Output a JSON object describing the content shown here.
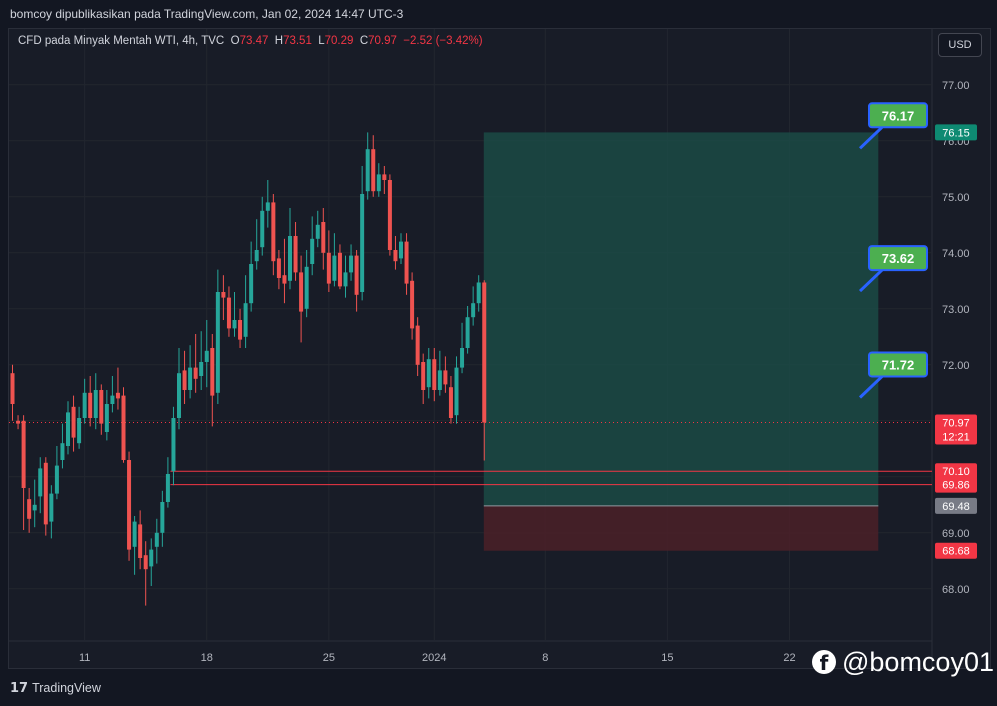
{
  "header": {
    "publication": "bomcoy dipublikasikan pada TradingView.com, Jan 02, 2024 14:47 UTC-3"
  },
  "symbol": {
    "description": "CFD pada Minyak Mentah WTI, 4h, TVC",
    "open_label": "O",
    "open": "73.47",
    "high_label": "H",
    "high": "73.51",
    "low_label": "L",
    "low": "70.29",
    "close_label": "C",
    "close": "70.97",
    "change": "−2.52 (−3.42%)"
  },
  "currency_button": "USD",
  "footer": {
    "brand": "TradingView",
    "logo_mark": "17"
  },
  "watermark": {
    "icon": "facebook-icon",
    "handle": "@bomcoy01"
  },
  "colors": {
    "up": "#26a69a",
    "down": "#ef5350",
    "target_zone": "#1a4a44",
    "stop_zone": "#4a2129",
    "callout_fill": "#4caf50",
    "callout_border": "#2962ff",
    "last_price": "#f23645"
  },
  "chart_data": {
    "type": "candlestick",
    "timeframe": "4h",
    "ylim": [
      67.0,
      77.8
    ],
    "y_ticks": [
      "77.00",
      "76.00",
      "75.00",
      "74.00",
      "73.00",
      "72.00",
      "71.00",
      "70.00",
      "69.00",
      "68.00"
    ],
    "x_ticks": [
      {
        "label": "11",
        "bar": 13
      },
      {
        "label": "18",
        "bar": 35
      },
      {
        "label": "25",
        "bar": 57
      },
      {
        "label": "2024",
        "bar": 76
      },
      {
        "label": "8",
        "bar": 96
      },
      {
        "label": "15",
        "bar": 118
      },
      {
        "label": "22",
        "bar": 140
      }
    ],
    "candles": [
      [
        71.85,
        71.3,
        72.0,
        71.0
      ],
      [
        71.0,
        70.95,
        71.1,
        70.85
      ],
      [
        71.0,
        69.8,
        71.1,
        69.05
      ],
      [
        69.6,
        69.25,
        69.8,
        69.0
      ],
      [
        69.4,
        69.5,
        69.95,
        69.1
      ],
      [
        69.65,
        70.15,
        70.35,
        69.35
      ],
      [
        70.25,
        69.15,
        70.35,
        68.95
      ],
      [
        69.2,
        69.7,
        69.85,
        68.9
      ],
      [
        69.7,
        70.2,
        70.55,
        69.6
      ],
      [
        70.3,
        70.6,
        70.95,
        70.15
      ],
      [
        70.55,
        71.15,
        71.35,
        70.4
      ],
      [
        71.25,
        70.7,
        71.45,
        70.45
      ],
      [
        70.6,
        71.05,
        71.25,
        70.5
      ],
      [
        71.05,
        71.5,
        71.75,
        70.95
      ],
      [
        71.5,
        71.05,
        71.8,
        70.9
      ],
      [
        71.05,
        71.55,
        71.85,
        70.85
      ],
      [
        71.55,
        70.95,
        71.65,
        70.75
      ],
      [
        70.8,
        71.3,
        71.55,
        70.65
      ],
      [
        71.3,
        71.45,
        71.8,
        71.15
      ],
      [
        71.5,
        71.4,
        71.95,
        71.2
      ],
      [
        71.45,
        70.3,
        71.6,
        70.25
      ],
      [
        70.3,
        68.7,
        70.45,
        68.5
      ],
      [
        68.75,
        69.2,
        69.3,
        68.25
      ],
      [
        69.15,
        68.55,
        69.4,
        68.35
      ],
      [
        68.6,
        68.35,
        68.85,
        67.7
      ],
      [
        68.4,
        68.7,
        68.9,
        68.05
      ],
      [
        68.75,
        69.0,
        69.25,
        68.45
      ],
      [
        69.0,
        69.55,
        69.75,
        68.75
      ],
      [
        69.55,
        70.05,
        70.35,
        69.45
      ],
      [
        70.1,
        71.05,
        71.25,
        69.85
      ],
      [
        71.05,
        71.85,
        72.3,
        70.85
      ],
      [
        71.9,
        71.55,
        72.25,
        71.3
      ],
      [
        71.55,
        71.95,
        72.35,
        71.4
      ],
      [
        71.95,
        71.75,
        72.55,
        71.5
      ],
      [
        71.8,
        72.05,
        72.6,
        71.55
      ],
      [
        72.05,
        72.25,
        72.8,
        71.6
      ],
      [
        72.3,
        71.45,
        72.55,
        70.9
      ],
      [
        71.5,
        73.3,
        73.7,
        71.3
      ],
      [
        73.3,
        73.2,
        73.6,
        72.8
      ],
      [
        73.2,
        72.65,
        73.4,
        72.5
      ],
      [
        72.65,
        72.8,
        73.3,
        72.5
      ],
      [
        72.8,
        72.45,
        73.0,
        72.3
      ],
      [
        72.5,
        73.1,
        73.6,
        72.3
      ],
      [
        73.1,
        73.8,
        74.2,
        72.95
      ],
      [
        73.85,
        74.05,
        74.6,
        73.7
      ],
      [
        74.1,
        74.75,
        75.0,
        73.95
      ],
      [
        74.75,
        74.9,
        75.3,
        74.45
      ],
      [
        74.9,
        73.85,
        75.05,
        73.6
      ],
      [
        73.9,
        73.55,
        74.05,
        73.35
      ],
      [
        73.6,
        73.45,
        74.25,
        73.1
      ],
      [
        73.5,
        74.3,
        74.8,
        73.35
      ],
      [
        74.3,
        73.65,
        74.55,
        73.5
      ],
      [
        73.65,
        72.95,
        73.95,
        72.4
      ],
      [
        73.0,
        73.75,
        74.05,
        72.85
      ],
      [
        73.8,
        74.25,
        74.65,
        73.6
      ],
      [
        74.25,
        74.5,
        74.75,
        74.1
      ],
      [
        74.55,
        74.0,
        74.8,
        73.7
      ],
      [
        74.0,
        73.45,
        74.4,
        73.3
      ],
      [
        73.5,
        73.95,
        74.35,
        73.4
      ],
      [
        74.0,
        73.4,
        74.15,
        73.35
      ],
      [
        73.4,
        73.65,
        73.95,
        73.2
      ],
      [
        73.65,
        73.95,
        74.15,
        73.5
      ],
      [
        73.95,
        73.25,
        74.05,
        72.95
      ],
      [
        73.3,
        75.05,
        75.55,
        73.15
      ],
      [
        75.1,
        75.85,
        76.15,
        74.95
      ],
      [
        75.85,
        75.1,
        76.1,
        75.0
      ],
      [
        75.1,
        75.4,
        75.6,
        75.0
      ],
      [
        75.4,
        75.3,
        75.55,
        75.05
      ],
      [
        75.3,
        74.05,
        75.4,
        73.95
      ],
      [
        74.05,
        73.85,
        74.3,
        73.7
      ],
      [
        73.9,
        74.2,
        74.35,
        73.8
      ],
      [
        74.2,
        73.45,
        74.35,
        73.25
      ],
      [
        73.5,
        72.65,
        73.65,
        72.45
      ],
      [
        72.7,
        72.0,
        72.85,
        71.8
      ],
      [
        72.05,
        71.55,
        72.2,
        71.3
      ],
      [
        71.6,
        72.1,
        72.3,
        71.4
      ],
      [
        72.1,
        71.55,
        72.3,
        71.35
      ],
      [
        71.55,
        71.9,
        72.25,
        71.45
      ],
      [
        71.9,
        71.65,
        72.15,
        71.5
      ],
      [
        71.6,
        71.05,
        71.8,
        70.95
      ],
      [
        71.1,
        71.95,
        72.15,
        70.95
      ],
      [
        71.95,
        72.3,
        72.75,
        71.85
      ],
      [
        72.3,
        72.85,
        73.05,
        72.2
      ],
      [
        72.85,
        73.1,
        73.4,
        72.7
      ],
      [
        73.1,
        73.47,
        73.6,
        72.95
      ],
      [
        73.47,
        70.97,
        73.51,
        70.29
      ]
    ],
    "horizontal_lines": [
      {
        "label": "70.10",
        "value": 70.1,
        "color": "#f23645"
      },
      {
        "label": "69.86",
        "value": 69.86,
        "color": "#f23645"
      }
    ],
    "last_price": {
      "label": "70.97",
      "value": 70.97,
      "countdown": "12:21"
    },
    "position": {
      "entry": 69.48,
      "entry_label": "69.48",
      "target": 76.15,
      "target_label": "76.15",
      "stop": 68.68,
      "stop_label": "68.68",
      "start_bar": 86,
      "end_bar": 156
    },
    "callouts": [
      {
        "label": "76.17",
        "value": 76.17
      },
      {
        "label": "73.62",
        "value": 73.62
      },
      {
        "label": "71.72",
        "value": 71.72
      }
    ]
  }
}
